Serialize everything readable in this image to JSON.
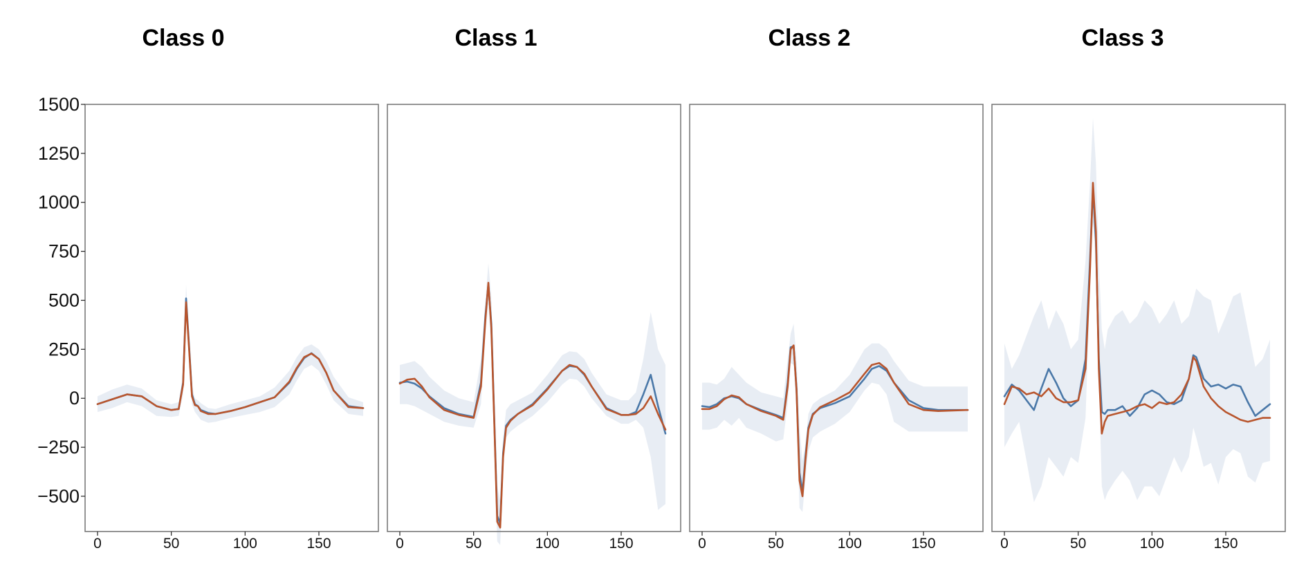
{
  "colors": {
    "band": "#e8edf4",
    "series_a": "#4a78a8",
    "series_b": "#b8552d"
  },
  "chart_data": [
    {
      "type": "line",
      "title": "Class 0",
      "xlim": [
        0,
        180
      ],
      "ylim": [
        -680,
        1500
      ],
      "xticks": [
        0,
        50,
        100,
        150
      ],
      "yticks": [
        1500,
        1250,
        1000,
        750,
        500,
        250,
        0,
        -250,
        -500
      ],
      "ytick_labels": [
        "1500",
        "1250",
        "1000",
        "750",
        "500",
        "250",
        "0",
        "−250",
        "−500"
      ],
      "x": [
        0,
        10,
        20,
        30,
        40,
        50,
        55,
        58,
        60,
        62,
        64,
        66,
        68,
        70,
        75,
        80,
        90,
        100,
        110,
        120,
        130,
        135,
        140,
        145,
        150,
        155,
        160,
        170,
        180
      ],
      "band_upper": [
        10,
        45,
        70,
        50,
        -10,
        -30,
        -20,
        120,
        580,
        330,
        60,
        0,
        -10,
        -25,
        -50,
        -55,
        -30,
        -10,
        10,
        55,
        140,
        210,
        260,
        275,
        250,
        190,
        110,
        5,
        -20
      ],
      "band_lower": [
        -70,
        -50,
        -20,
        -40,
        -90,
        -95,
        -90,
        20,
        420,
        200,
        -30,
        -70,
        -90,
        -110,
        -125,
        -120,
        -100,
        -85,
        -70,
        -45,
        20,
        90,
        150,
        170,
        140,
        70,
        -10,
        -80,
        -90
      ],
      "series": [
        {
          "values": [
            -30,
            -5,
            20,
            10,
            -40,
            -60,
            -55,
            80,
            510,
            270,
            20,
            -30,
            -40,
            -60,
            -75,
            -80,
            -65,
            -45,
            -20,
            5,
            80,
            150,
            205,
            230,
            200,
            130,
            40,
            -40,
            -50
          ]
        },
        {
          "values": [
            -30,
            -5,
            20,
            10,
            -40,
            -60,
            -55,
            70,
            490,
            255,
            10,
            -35,
            -40,
            -65,
            -80,
            -80,
            -65,
            -45,
            -20,
            5,
            85,
            155,
            210,
            228,
            200,
            130,
            40,
            -45,
            -50
          ]
        }
      ]
    },
    {
      "type": "line",
      "title": "Class 1",
      "xlim": [
        0,
        180
      ],
      "ylim": [
        -680,
        1500
      ],
      "xticks": [
        0,
        50,
        100,
        150
      ],
      "yticks": [
        1500,
        1250,
        1000,
        750,
        500,
        250,
        0,
        -250,
        -500
      ],
      "x": [
        0,
        5,
        10,
        15,
        20,
        30,
        40,
        50,
        55,
        58,
        60,
        62,
        64,
        66,
        68,
        70,
        72,
        75,
        80,
        90,
        100,
        110,
        115,
        120,
        125,
        130,
        140,
        150,
        155,
        160,
        165,
        170,
        175,
        180
      ],
      "band_upper": [
        170,
        180,
        190,
        160,
        110,
        40,
        0,
        -20,
        200,
        500,
        690,
        520,
        0,
        -450,
        -520,
        -200,
        -60,
        -30,
        -10,
        30,
        120,
        220,
        240,
        235,
        200,
        130,
        20,
        -10,
        -10,
        30,
        200,
        440,
        250,
        170
      ],
      "band_lower": [
        -30,
        -30,
        -40,
        -60,
        -80,
        -120,
        -140,
        -150,
        -30,
        330,
        480,
        240,
        -250,
        -730,
        -750,
        -350,
        -200,
        -170,
        -140,
        -90,
        -20,
        70,
        100,
        95,
        60,
        0,
        -90,
        -130,
        -130,
        -110,
        -150,
        -300,
        -570,
        -540
      ],
      "series": [
        {
          "values": [
            80,
            85,
            75,
            50,
            10,
            -50,
            -80,
            -95,
            80,
            420,
            580,
            380,
            -100,
            -600,
            -640,
            -280,
            -140,
            -110,
            -80,
            -30,
            50,
            140,
            165,
            160,
            120,
            60,
            -50,
            -85,
            -85,
            -70,
            20,
            120,
            -40,
            -180
          ]
        },
        {
          "values": [
            75,
            95,
            100,
            60,
            5,
            -60,
            -85,
            -100,
            60,
            400,
            590,
            360,
            -120,
            -630,
            -660,
            -300,
            -150,
            -115,
            -80,
            -35,
            45,
            140,
            170,
            160,
            125,
            60,
            -55,
            -85,
            -85,
            -80,
            -50,
            10,
            -80,
            -160
          ]
        }
      ]
    },
    {
      "type": "line",
      "title": "Class 2",
      "xlim": [
        0,
        180
      ],
      "ylim": [
        -680,
        1500
      ],
      "xticks": [
        0,
        50,
        100,
        150
      ],
      "yticks": [
        1500,
        1250,
        1000,
        750,
        500,
        250,
        0,
        -250,
        -500
      ],
      "x": [
        0,
        5,
        10,
        15,
        20,
        25,
        30,
        40,
        50,
        55,
        58,
        60,
        62,
        64,
        66,
        68,
        70,
        72,
        75,
        80,
        90,
        100,
        110,
        115,
        120,
        125,
        130,
        140,
        150,
        160,
        180
      ],
      "band_upper": [
        80,
        80,
        70,
        100,
        160,
        120,
        80,
        30,
        10,
        0,
        200,
        330,
        380,
        200,
        -150,
        -320,
        -230,
        -80,
        -30,
        0,
        40,
        120,
        250,
        280,
        280,
        250,
        190,
        90,
        60,
        60,
        60
      ],
      "band_lower": [
        -160,
        -160,
        -150,
        -110,
        -140,
        -100,
        -150,
        -180,
        -220,
        -210,
        -30,
        180,
        170,
        -80,
        -560,
        -580,
        -420,
        -270,
        -200,
        -170,
        -130,
        -70,
        40,
        80,
        70,
        20,
        -120,
        -170,
        -170,
        -170,
        -170
      ],
      "series": [
        {
          "values": [
            -40,
            -45,
            -30,
            0,
            10,
            0,
            -30,
            -60,
            -85,
            -100,
            80,
            260,
            265,
            50,
            -380,
            -480,
            -300,
            -150,
            -80,
            -50,
            -25,
            10,
            100,
            150,
            165,
            140,
            80,
            -10,
            -50,
            -60,
            -60
          ]
        },
        {
          "values": [
            -55,
            -55,
            -40,
            -5,
            15,
            5,
            -30,
            -65,
            -90,
            -110,
            60,
            250,
            270,
            40,
            -420,
            -500,
            -320,
            -160,
            -85,
            -45,
            -10,
            30,
            125,
            170,
            180,
            150,
            80,
            -30,
            -60,
            -65,
            -60
          ]
        }
      ]
    },
    {
      "type": "line",
      "title": "Class 3",
      "xlim": [
        0,
        180
      ],
      "ylim": [
        -680,
        1500
      ],
      "xticks": [
        0,
        50,
        100,
        150
      ],
      "yticks": [
        1500,
        1250,
        1000,
        750,
        500,
        250,
        0,
        -250,
        -500
      ],
      "x": [
        0,
        5,
        10,
        15,
        20,
        25,
        30,
        35,
        40,
        45,
        50,
        55,
        58,
        60,
        62,
        64,
        66,
        68,
        70,
        75,
        80,
        85,
        90,
        95,
        100,
        105,
        110,
        115,
        120,
        125,
        128,
        130,
        135,
        140,
        145,
        150,
        155,
        160,
        165,
        170,
        175,
        180
      ],
      "band_upper": [
        280,
        150,
        220,
        320,
        420,
        500,
        350,
        450,
        380,
        250,
        300,
        700,
        1100,
        1430,
        1200,
        700,
        350,
        250,
        350,
        420,
        450,
        380,
        420,
        500,
        460,
        380,
        430,
        500,
        380,
        420,
        500,
        560,
        520,
        500,
        330,
        420,
        520,
        540,
        350,
        160,
        200,
        300
      ],
      "band_lower": [
        -250,
        -180,
        -120,
        -320,
        -530,
        -450,
        -300,
        -350,
        -400,
        -300,
        -330,
        -100,
        550,
        900,
        700,
        100,
        -450,
        -520,
        -480,
        -420,
        -370,
        -420,
        -520,
        -450,
        -450,
        -500,
        -400,
        -300,
        -380,
        -300,
        -150,
        -200,
        -350,
        -330,
        -440,
        -300,
        -260,
        -280,
        -400,
        -430,
        -330,
        -320
      ],
      "series": [
        {
          "values": [
            10,
            70,
            40,
            -10,
            -60,
            50,
            150,
            80,
            0,
            -40,
            -10,
            200,
            700,
            1070,
            800,
            200,
            -70,
            -80,
            -60,
            -60,
            -40,
            -90,
            -50,
            20,
            40,
            20,
            -20,
            -30,
            -10,
            100,
            220,
            210,
            100,
            60,
            70,
            50,
            70,
            60,
            -20,
            -90,
            -60,
            -30
          ]
        },
        {
          "values": [
            -30,
            60,
            50,
            20,
            30,
            10,
            50,
            0,
            -20,
            -20,
            -10,
            150,
            650,
            1100,
            850,
            150,
            -180,
            -120,
            -90,
            -80,
            -70,
            -60,
            -40,
            -30,
            -50,
            -20,
            -30,
            -20,
            20,
            100,
            210,
            190,
            60,
            0,
            -40,
            -70,
            -90,
            -110,
            -120,
            -110,
            -100,
            -100
          ]
        }
      ]
    }
  ]
}
